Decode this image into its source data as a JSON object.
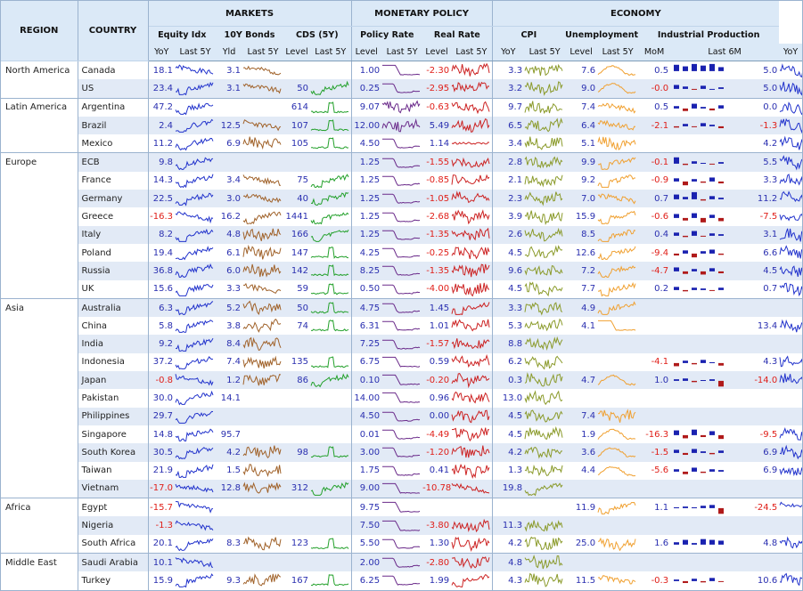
{
  "headers": {
    "region": "REGION",
    "country": "COUNTRY",
    "markets": "MARKETS",
    "monetary": "MONETARY POLICY",
    "economy": "ECONOMY",
    "equity": "Equity Idx",
    "bonds": "10Y Bonds",
    "cds": "CDS (5Y)",
    "policy": "Policy Rate",
    "real": "Real Rate",
    "cpi": "CPI",
    "unemp": "Unemployment",
    "indprod": "Industrial Production",
    "yoy": "YoY",
    "last5y": "Last 5Y",
    "yld": "Yld",
    "level": "Level",
    "mom": "MoM",
    "last6m": "Last 6M"
  },
  "colors": {
    "equity": "#2233cc",
    "bonds": "#a0622a",
    "cds": "#22a02a",
    "policy": "#6a2a8a",
    "real": "#cc2222",
    "cpi": "#8a9a2a",
    "unemp": "#f0a030",
    "ip": "#2233cc",
    "bar_pos": "#1a22b0",
    "bar_neg": "#b01a1a",
    "header_bg": "#dbe9f7",
    "row_alt": "#e2eaf6"
  },
  "chart_data": {
    "type": "table",
    "rows": [
      {
        "region": "North America",
        "country": "Canada",
        "eq": "18.1",
        "bond": "3.1",
        "cds": "",
        "pol": "1.00",
        "real": "-2.30",
        "cpi": "3.3",
        "unemp": "7.6",
        "mom": "0.5",
        "ipyoy": "5.0",
        "bars": [
          0.8,
          0.6,
          0.9,
          0.7,
          0.9,
          0.5
        ],
        "spk": {
          "eq": "dn",
          "bond": "dn",
          "cds": "",
          "pol": "step",
          "real": "vol",
          "cpi": "vol",
          "unemp": "hump",
          "ip": "vol"
        }
      },
      {
        "region": "",
        "country": "US",
        "eq": "23.4",
        "bond": "3.1",
        "cds": "50",
        "pol": "0.25",
        "real": "-2.95",
        "cpi": "3.2",
        "unemp": "9.0",
        "mom": "-0.0",
        "ipyoy": "5.0",
        "bars": [
          0.5,
          0.3,
          -0.1,
          0.4,
          0.0,
          0.2
        ],
        "spk": {
          "eq": "up",
          "bond": "dn",
          "cds": "up",
          "pol": "drop",
          "real": "vol",
          "cpi": "vol",
          "unemp": "hump",
          "ip": "vol"
        }
      },
      {
        "region": "Latin America",
        "country": "Argentina",
        "eq": "47.2",
        "bond": "",
        "cds": "614",
        "pol": "9.07",
        "real": "-0.63",
        "cpi": "9.7",
        "unemp": "7.4",
        "mom": "0.5",
        "ipyoy": "0.0",
        "bars": [
          0.3,
          -0.4,
          0.6,
          0.2,
          -0.3,
          0.4
        ],
        "spk": {
          "eq": "up",
          "bond": "",
          "cds": "spike",
          "pol": "vol",
          "real": "vol",
          "cpi": "vol",
          "unemp": "dn",
          "ip": "vol"
        }
      },
      {
        "region": "",
        "country": "Brazil",
        "eq": "2.4",
        "bond": "12.5",
        "cds": "107",
        "pol": "12.00",
        "real": "5.49",
        "cpi": "6.5",
        "unemp": "6.4",
        "mom": "-2.1",
        "ipyoy": "-1.3",
        "bars": [
          -0.2,
          0.3,
          -0.1,
          0.4,
          0.2,
          -0.3
        ],
        "spk": {
          "eq": "up",
          "bond": "dn",
          "cds": "spike",
          "pol": "vol",
          "real": "vol",
          "cpi": "vol",
          "unemp": "dn",
          "ip": "vol"
        }
      },
      {
        "region": "",
        "country": "Mexico",
        "eq": "11.2",
        "bond": "6.9",
        "cds": "105",
        "pol": "4.50",
        "real": "1.14",
        "cpi": "3.4",
        "unemp": "5.1",
        "mom": "",
        "ipyoy": "4.2",
        "bars": [],
        "spk": {
          "eq": "up",
          "bond": "vol",
          "cds": "spike",
          "pol": "drop",
          "real": "flat",
          "cpi": "vol",
          "unemp": "vol",
          "ip": "vol"
        }
      },
      {
        "region": "Europe",
        "country": "ECB",
        "eq": "9.8",
        "bond": "",
        "cds": "",
        "pol": "1.25",
        "real": "-1.55",
        "cpi": "2.8",
        "unemp": "9.9",
        "mom": "-0.1",
        "ipyoy": "5.5",
        "bars": [
          0.8,
          -0.2,
          0.3,
          0.1,
          -0.1,
          0.2
        ],
        "spk": {
          "eq": "up",
          "bond": "",
          "cds": "",
          "pol": "drop",
          "real": "vol",
          "cpi": "vol",
          "unemp": "up",
          "ip": "vol"
        }
      },
      {
        "region": "",
        "country": "France",
        "eq": "14.3",
        "bond": "3.4",
        "cds": "75",
        "pol": "1.25",
        "real": "-0.85",
        "cpi": "2.1",
        "unemp": "9.2",
        "mom": "-0.9",
        "ipyoy": "3.3",
        "bars": [
          0.4,
          -0.6,
          0.3,
          -0.2,
          0.5,
          -0.3
        ],
        "spk": {
          "eq": "up",
          "bond": "dn",
          "cds": "up",
          "pol": "drop",
          "real": "vol",
          "cpi": "vol",
          "unemp": "up",
          "ip": "vol"
        }
      },
      {
        "region": "",
        "country": "Germany",
        "eq": "22.5",
        "bond": "3.0",
        "cds": "40",
        "pol": "1.25",
        "real": "-1.05",
        "cpi": "2.3",
        "unemp": "7.0",
        "mom": "0.7",
        "ipyoy": "11.2",
        "bars": [
          0.6,
          0.3,
          0.9,
          -0.2,
          0.4,
          0.2
        ],
        "spk": {
          "eq": "up",
          "bond": "dn",
          "cds": "up",
          "pol": "drop",
          "real": "vol",
          "cpi": "vol",
          "unemp": "dn",
          "ip": "vol"
        }
      },
      {
        "region": "",
        "country": "Greece",
        "eq": "-16.3",
        "bond": "16.2",
        "cds": "1441",
        "pol": "1.25",
        "real": "-2.68",
        "cpi": "3.9",
        "unemp": "15.9",
        "mom": "-0.6",
        "ipyoy": "-7.5",
        "bars": [
          0.5,
          -0.4,
          0.6,
          -0.7,
          0.4,
          -0.5
        ],
        "spk": {
          "eq": "dn",
          "bond": "up",
          "cds": "up",
          "pol": "drop",
          "real": "vol",
          "cpi": "vol",
          "unemp": "up",
          "ip": "vol"
        }
      },
      {
        "region": "",
        "country": "Italy",
        "eq": "8.2",
        "bond": "4.8",
        "cds": "166",
        "pol": "1.25",
        "real": "-1.35",
        "cpi": "2.6",
        "unemp": "8.5",
        "mom": "0.4",
        "ipyoy": "3.1",
        "bars": [
          0.4,
          -0.2,
          0.6,
          -0.1,
          0.3,
          0.2
        ],
        "spk": {
          "eq": "up",
          "bond": "vol",
          "cds": "up",
          "pol": "drop",
          "real": "vol",
          "cpi": "vol",
          "unemp": "up",
          "ip": "vol"
        }
      },
      {
        "region": "",
        "country": "Poland",
        "eq": "19.4",
        "bond": "6.1",
        "cds": "147",
        "pol": "4.25",
        "real": "-0.25",
        "cpi": "4.5",
        "unemp": "12.6",
        "mom": "-9.4",
        "ipyoy": "6.6",
        "bars": [
          -0.3,
          0.4,
          -0.6,
          0.3,
          0.5,
          -0.2
        ],
        "spk": {
          "eq": "up",
          "bond": "vol",
          "cds": "spike",
          "pol": "drop",
          "real": "vol",
          "cpi": "vol",
          "unemp": "up",
          "ip": "vol"
        }
      },
      {
        "region": "",
        "country": "Russia",
        "eq": "36.8",
        "bond": "6.0",
        "cds": "142",
        "pol": "8.25",
        "real": "-1.35",
        "cpi": "9.6",
        "unemp": "7.2",
        "mom": "-4.7",
        "ipyoy": "4.5",
        "bars": [
          0.5,
          -0.4,
          0.3,
          -0.5,
          0.4,
          -0.3
        ],
        "spk": {
          "eq": "up",
          "bond": "vol",
          "cds": "spike",
          "pol": "drop",
          "real": "vol",
          "cpi": "vol",
          "unemp": "up",
          "ip": "vol"
        }
      },
      {
        "region": "",
        "country": "UK",
        "eq": "15.6",
        "bond": "3.3",
        "cds": "59",
        "pol": "0.50",
        "real": "-4.00",
        "cpi": "4.5",
        "unemp": "7.7",
        "mom": "0.2",
        "ipyoy": "0.7",
        "bars": [
          0.4,
          -0.2,
          0.3,
          0.2,
          -0.1,
          0.3
        ],
        "spk": {
          "eq": "up",
          "bond": "dn",
          "cds": "spike",
          "pol": "drop",
          "real": "vol",
          "cpi": "vol",
          "unemp": "up",
          "ip": "vol"
        }
      },
      {
        "region": "Asia",
        "country": "Australia",
        "eq": "6.3",
        "bond": "5.2",
        "cds": "50",
        "pol": "4.75",
        "real": "1.45",
        "cpi": "3.3",
        "unemp": "4.9",
        "mom": "",
        "ipyoy": "",
        "bars": [],
        "spk": {
          "eq": "up",
          "bond": "vol",
          "cds": "spike",
          "pol": "drop",
          "real": "up",
          "cpi": "vol",
          "unemp": "up",
          "ip": ""
        }
      },
      {
        "region": "",
        "country": "China",
        "eq": "5.8",
        "bond": "3.8",
        "cds": "74",
        "pol": "6.31",
        "real": "1.01",
        "cpi": "5.3",
        "unemp": "4.1",
        "mom": "",
        "ipyoy": "13.4",
        "bars": [],
        "spk": {
          "eq": "up",
          "bond": "vol",
          "cds": "spike",
          "pol": "drop",
          "real": "vol",
          "cpi": "vol",
          "unemp": "step",
          "ip": "vol"
        }
      },
      {
        "region": "",
        "country": "India",
        "eq": "9.2",
        "bond": "8.4",
        "cds": "",
        "pol": "7.25",
        "real": "-1.57",
        "cpi": "8.8",
        "unemp": "",
        "mom": "",
        "ipyoy": "",
        "bars": [],
        "spk": {
          "eq": "up",
          "bond": "vol",
          "cds": "",
          "pol": "drop",
          "real": "vol",
          "cpi": "vol",
          "unemp": "",
          "ip": ""
        }
      },
      {
        "region": "",
        "country": "Indonesia",
        "eq": "37.2",
        "bond": "7.4",
        "cds": "135",
        "pol": "6.75",
        "real": "0.59",
        "cpi": "6.2",
        "unemp": "",
        "mom": "-4.1",
        "ipyoy": "4.3",
        "bars": [
          -0.5,
          0.3,
          -0.2,
          0.4,
          0.1,
          -0.4
        ],
        "spk": {
          "eq": "up",
          "bond": "vol",
          "cds": "spike",
          "pol": "step",
          "real": "vol",
          "cpi": "vol",
          "unemp": "",
          "ip": "vol"
        }
      },
      {
        "region": "",
        "country": "Japan",
        "eq": "-0.8",
        "bond": "1.2",
        "cds": "86",
        "pol": "0.10",
        "real": "-0.20",
        "cpi": "0.3",
        "unemp": "4.7",
        "mom": "1.0",
        "ipyoy": "-14.0",
        "bars": [
          0.2,
          0.3,
          -0.2,
          0.1,
          0.2,
          -0.9
        ],
        "spk": {
          "eq": "dn",
          "bond": "vol",
          "cds": "up",
          "pol": "step",
          "real": "vol",
          "cpi": "vol",
          "unemp": "hump",
          "ip": "vol"
        }
      },
      {
        "region": "",
        "country": "Pakistan",
        "eq": "30.0",
        "bond": "14.1",
        "cds": "",
        "pol": "14.00",
        "real": "0.96",
        "cpi": "13.0",
        "unemp": "",
        "mom": "",
        "ipyoy": "",
        "bars": [],
        "spk": {
          "eq": "up",
          "bond": "",
          "cds": "",
          "pol": "step",
          "real": "vol",
          "cpi": "vol",
          "unemp": "",
          "ip": ""
        }
      },
      {
        "region": "",
        "country": "Philippines",
        "eq": "29.7",
        "bond": "",
        "cds": "",
        "pol": "4.50",
        "real": "0.00",
        "cpi": "4.5",
        "unemp": "7.4",
        "mom": "",
        "ipyoy": "",
        "bars": [],
        "spk": {
          "eq": "up",
          "bond": "",
          "cds": "",
          "pol": "drop",
          "real": "vol",
          "cpi": "vol",
          "unemp": "vol",
          "ip": ""
        }
      },
      {
        "region": "",
        "country": "Singapore",
        "eq": "14.8",
        "bond": "95.7",
        "cds": "",
        "pol": "0.01",
        "real": "-4.49",
        "cpi": "4.5",
        "unemp": "1.9",
        "mom": "-16.3",
        "ipyoy": "-9.5",
        "bars": [
          0.6,
          -0.5,
          0.7,
          -0.3,
          0.5,
          -0.6
        ],
        "spk": {
          "eq": "up",
          "bond": "",
          "cds": "",
          "pol": "drop",
          "real": "vol",
          "cpi": "vol",
          "unemp": "hump",
          "ip": "vol"
        }
      },
      {
        "region": "",
        "country": "South Korea",
        "eq": "30.5",
        "bond": "4.2",
        "cds": "98",
        "pol": "3.00",
        "real": "-1.20",
        "cpi": "4.2",
        "unemp": "3.6",
        "mom": "-1.5",
        "ipyoy": "6.9",
        "bars": [
          0.4,
          -0.3,
          0.5,
          0.2,
          -0.2,
          0.3
        ],
        "spk": {
          "eq": "up",
          "bond": "vol",
          "cds": "spike",
          "pol": "drop",
          "real": "vol",
          "cpi": "vol",
          "unemp": "hump",
          "ip": "vol"
        }
      },
      {
        "region": "",
        "country": "Taiwan",
        "eq": "21.9",
        "bond": "1.5",
        "cds": "",
        "pol": "1.75",
        "real": "0.41",
        "cpi": "1.3",
        "unemp": "4.4",
        "mom": "-5.6",
        "ipyoy": "6.9",
        "bars": [
          0.3,
          -0.4,
          0.5,
          -0.2,
          0.3,
          0.2
        ],
        "spk": {
          "eq": "up",
          "bond": "vol",
          "cds": "",
          "pol": "drop",
          "real": "vol",
          "cpi": "vol",
          "unemp": "hump",
          "ip": "vol"
        }
      },
      {
        "region": "",
        "country": "Vietnam",
        "eq": "-17.0",
        "bond": "12.8",
        "cds": "312",
        "pol": "9.00",
        "real": "-10.78",
        "cpi": "19.8",
        "unemp": "",
        "mom": "",
        "ipyoy": "",
        "bars": [],
        "spk": {
          "eq": "dn",
          "bond": "vol",
          "cds": "up",
          "pol": "step",
          "real": "dn",
          "cpi": "up",
          "unemp": "",
          "ip": ""
        }
      },
      {
        "region": "Africa",
        "country": "Egypt",
        "eq": "-15.7",
        "bond": "",
        "cds": "",
        "pol": "9.75",
        "real": "",
        "cpi": "",
        "unemp": "11.9",
        "mom": "1.1",
        "ipyoy": "-24.5",
        "bars": [
          0.1,
          0.2,
          0.1,
          0.3,
          0.4,
          -0.9
        ],
        "spk": {
          "eq": "dn",
          "bond": "",
          "cds": "",
          "pol": "step",
          "real": "",
          "cpi": "",
          "unemp": "up",
          "ip": "dn"
        }
      },
      {
        "region": "",
        "country": "Nigeria",
        "eq": "-1.3",
        "bond": "",
        "cds": "",
        "pol": "7.50",
        "real": "-3.80",
        "cpi": "11.3",
        "unemp": "",
        "mom": "",
        "ipyoy": "",
        "bars": [],
        "spk": {
          "eq": "dn",
          "bond": "",
          "cds": "",
          "pol": "step",
          "real": "vol",
          "cpi": "vol",
          "unemp": "",
          "ip": ""
        }
      },
      {
        "region": "",
        "country": "South Africa",
        "eq": "20.1",
        "bond": "8.3",
        "cds": "123",
        "pol": "5.50",
        "real": "1.30",
        "cpi": "4.2",
        "unemp": "25.0",
        "mom": "1.6",
        "ipyoy": "4.8",
        "bars": [
          0.3,
          0.6,
          0.2,
          0.7,
          0.6,
          0.5
        ],
        "spk": {
          "eq": "up",
          "bond": "vol",
          "cds": "spike",
          "pol": "drop",
          "real": "vol",
          "cpi": "vol",
          "unemp": "vol",
          "ip": "vol"
        }
      },
      {
        "region": "Middle East",
        "country": "Saudi Arabia",
        "eq": "10.1",
        "bond": "",
        "cds": "",
        "pol": "2.00",
        "real": "-2.80",
        "cpi": "4.8",
        "unemp": "",
        "mom": "",
        "ipyoy": "",
        "bars": [],
        "spk": {
          "eq": "dn",
          "bond": "",
          "cds": "",
          "pol": "drop",
          "real": "vol",
          "cpi": "vol",
          "unemp": "",
          "ip": ""
        }
      },
      {
        "region": "",
        "country": "Turkey",
        "eq": "15.9",
        "bond": "9.3",
        "cds": "167",
        "pol": "6.25",
        "real": "1.99",
        "cpi": "4.3",
        "unemp": "11.5",
        "mom": "-0.3",
        "ipyoy": "10.6",
        "bars": [
          0.2,
          -0.3,
          0.3,
          -0.2,
          0.4,
          -0.1
        ],
        "spk": {
          "eq": "up",
          "bond": "vol",
          "cds": "spike",
          "pol": "drop",
          "real": "up",
          "cpi": "vol",
          "unemp": "dn",
          "ip": "vol"
        }
      }
    ]
  }
}
